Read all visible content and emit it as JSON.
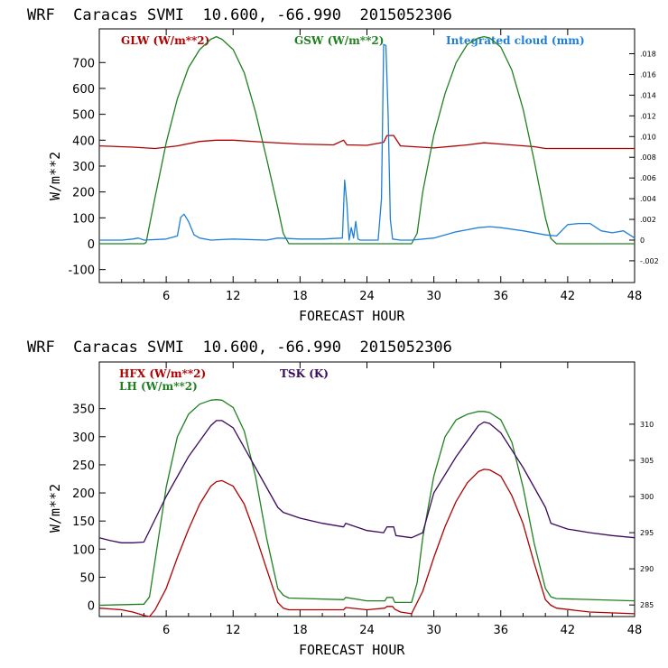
{
  "chart_data": [
    {
      "type": "line",
      "title": "WRF  Caracas SVMI  10.600, -66.990  2015052306",
      "xlabel": "FORECAST HOUR",
      "ylabel": "W/m**2",
      "xlim": [
        0,
        48
      ],
      "ylim": [
        -150,
        830
      ],
      "y2lim": [
        -0.0041,
        0.0204
      ],
      "xticks": [
        "6",
        "12",
        "18",
        "24",
        "30",
        "36",
        "42",
        "48"
      ],
      "yticks": [
        "-100",
        "0",
        "100",
        "200",
        "300",
        "400",
        "500",
        "600",
        "700"
      ],
      "y2ticks": [
        "-.002",
        "0",
        ".002",
        ".004",
        ".006",
        ".008",
        ".010",
        ".012",
        ".014",
        ".016",
        ".018"
      ],
      "series": [
        {
          "name": "GLW (W/m**2)",
          "color": "#b00000",
          "axis": "left",
          "x": [
            0,
            3,
            5,
            7,
            9,
            10.5,
            12,
            15,
            18,
            21,
            21.9,
            22.2,
            24,
            25.5,
            25.8,
            26.4,
            27,
            30,
            33,
            34.5,
            36,
            39,
            40,
            42,
            45,
            48
          ],
          "y": [
            378,
            373,
            368,
            378,
            395,
            400,
            400,
            392,
            385,
            382,
            400,
            382,
            380,
            392,
            418,
            418,
            378,
            370,
            382,
            390,
            385,
            375,
            368,
            368,
            368,
            368
          ]
        },
        {
          "name": "GSW (W/m**2)",
          "color": "#208020",
          "axis": "left",
          "x": [
            0,
            4,
            4.2,
            5,
            6,
            7,
            8,
            9,
            10,
            10.5,
            11,
            12,
            13,
            14,
            15,
            16,
            16.5,
            17,
            24,
            28,
            28.5,
            29,
            30,
            31,
            32,
            33,
            34,
            34.5,
            35,
            36,
            37,
            38,
            39,
            40,
            40.5,
            41,
            48
          ],
          "y": [
            0,
            0,
            5,
            180,
            390,
            560,
            680,
            750,
            790,
            800,
            790,
            750,
            660,
            510,
            330,
            140,
            40,
            0,
            0,
            0,
            40,
            200,
            420,
            580,
            700,
            770,
            795,
            800,
            795,
            760,
            670,
            520,
            320,
            100,
            20,
            0,
            0
          ]
        },
        {
          "name": "Integrated cloud (mm)",
          "color": "#1e7fd8",
          "axis": "right",
          "x": [
            0,
            2,
            3,
            3.5,
            4,
            6,
            7,
            7.3,
            7.6,
            8,
            8.5,
            9,
            10,
            12,
            15,
            16,
            18,
            20,
            21.8,
            22,
            22.2,
            22.4,
            22.6,
            22.8,
            23,
            23.2,
            23.4,
            25,
            25.3,
            25.5,
            25.7,
            25.9,
            26.1,
            26.3,
            27,
            28,
            30,
            32,
            33,
            34,
            35,
            36,
            38,
            40,
            41,
            42,
            43,
            44,
            45,
            46,
            47,
            48
          ],
          "y": [
            0,
            0,
            0.0001,
            0.0002,
            0,
            0.0001,
            0.0004,
            0.0022,
            0.0025,
            0.0018,
            0.0005,
            0.0002,
            0,
            0.0001,
            0,
            0.0002,
            0.0001,
            0.0001,
            0.0002,
            0.0058,
            0.0035,
            0,
            0.0012,
            0.0002,
            0.0018,
            0.0001,
            0,
            0,
            0.004,
            0.0189,
            0.0188,
            0.012,
            0.002,
            0.0001,
            0,
            0,
            0.0002,
            0.0008,
            0.001,
            0.0012,
            0.0013,
            0.0012,
            0.0009,
            0.0005,
            0.0004,
            0.0015,
            0.0016,
            0.0016,
            0.0009,
            0.0007,
            0.0009,
            0.0002
          ]
        }
      ]
    },
    {
      "type": "line",
      "title": "WRF  Caracas SVMI  10.600, -66.990  2015052306",
      "xlabel": "FORECAST HOUR",
      "ylabel": "W/m**2",
      "xlim": [
        0,
        48
      ],
      "ylim": [
        -20,
        433
      ],
      "y2lim": [
        283.4,
        318.6
      ],
      "xticks": [
        "6",
        "12",
        "18",
        "24",
        "30",
        "36",
        "42",
        "48"
      ],
      "yticks": [
        "0",
        "50",
        "100",
        "150",
        "200",
        "250",
        "300",
        "350"
      ],
      "y2ticks": [
        "285",
        "290",
        "295",
        "300",
        "305",
        "310"
      ],
      "series": [
        {
          "name": "HFX (W/m**2)",
          "color": "#b00000",
          "axis": "left",
          "x": [
            0,
            2,
            3,
            4,
            4.5,
            5,
            6,
            7,
            8,
            9,
            10,
            10.5,
            11,
            12,
            13,
            14,
            15,
            16,
            16.5,
            17,
            18,
            21.9,
            22.1,
            24,
            25.6,
            25.8,
            26.3,
            26.5,
            27,
            28,
            29,
            30,
            31,
            32,
            33,
            34,
            34.5,
            35,
            36,
            37,
            38,
            39,
            40,
            40.5,
            41,
            44,
            48
          ],
          "y": [
            -5,
            -8,
            -12,
            -18,
            -20,
            -8,
            30,
            85,
            135,
            180,
            212,
            220,
            222,
            212,
            180,
            125,
            65,
            5,
            -5,
            -8,
            -8,
            -8,
            -4,
            -8,
            -5,
            -2,
            -2,
            -7,
            -12,
            -15,
            25,
            85,
            140,
            185,
            218,
            238,
            242,
            241,
            230,
            195,
            145,
            75,
            10,
            0,
            -5,
            -12,
            -15
          ]
        },
        {
          "name": "LH (W/m**2)",
          "color": "#208020",
          "axis": "left",
          "x": [
            0,
            4,
            4.5,
            5,
            6,
            7,
            8,
            9,
            10,
            10.5,
            11,
            12,
            13,
            14,
            15,
            16,
            16.5,
            17,
            21.9,
            22.1,
            24,
            25.6,
            25.8,
            26.3,
            26.5,
            28,
            28.5,
            29,
            30,
            31,
            32,
            33,
            34,
            34.5,
            35,
            36,
            37,
            38,
            39,
            40,
            40.5,
            41,
            48
          ],
          "y": [
            0,
            2,
            15,
            80,
            210,
            300,
            340,
            358,
            365,
            366,
            365,
            352,
            310,
            230,
            120,
            30,
            18,
            13,
            10,
            14,
            8,
            8,
            14,
            14,
            5,
            5,
            40,
            120,
            230,
            300,
            330,
            340,
            345,
            345,
            343,
            330,
            290,
            210,
            110,
            30,
            15,
            12,
            8
          ]
        },
        {
          "name": "TSK (K)",
          "color": "#3a0a5c",
          "axis": "right",
          "x": [
            0,
            1,
            2,
            3,
            4,
            6,
            8,
            10,
            10.5,
            11,
            12,
            14,
            16,
            16.5,
            18,
            20,
            21.9,
            22.1,
            24,
            25.5,
            25.8,
            26.4,
            26.6,
            28,
            29,
            30,
            32,
            34,
            34.5,
            35,
            36,
            38,
            40,
            40.5,
            42,
            44,
            46,
            48
          ],
          "y": [
            294.3,
            293.9,
            293.6,
            293.6,
            293.7,
            300,
            305.5,
            309.8,
            310.5,
            310.5,
            309.5,
            304,
            298.5,
            297.8,
            297,
            296.3,
            295.8,
            296.3,
            295.3,
            295,
            295.8,
            295.8,
            294.6,
            294.3,
            295,
            300.5,
            305.5,
            309.8,
            310.3,
            310.1,
            308.8,
            304,
            298.5,
            296.3,
            295.5,
            295,
            294.6,
            294.3
          ]
        }
      ]
    }
  ]
}
